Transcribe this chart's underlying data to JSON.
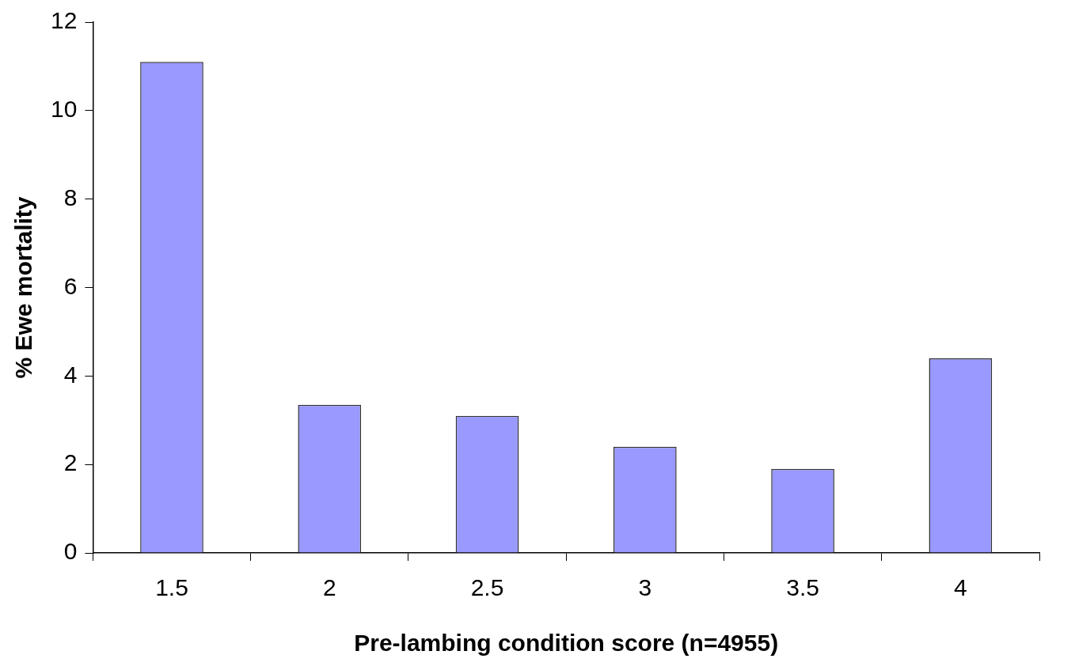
{
  "chart_data": {
    "type": "bar",
    "xlabel": "Pre-lambing condition score (n=4955)",
    "ylabel": "% Ewe mortality",
    "categories": [
      "1.5",
      "2",
      "2.5",
      "3",
      "3.5",
      "4"
    ],
    "series": [
      {
        "color": "#9999ff",
        "values": [
          11.1,
          3.35,
          3.1,
          2.4,
          1.9,
          4.4
        ]
      }
    ],
    "ylim": [
      0,
      12
    ],
    "yticks": [
      0,
      2,
      4,
      6,
      8,
      10,
      12
    ],
    "grid": false,
    "legend": false
  }
}
